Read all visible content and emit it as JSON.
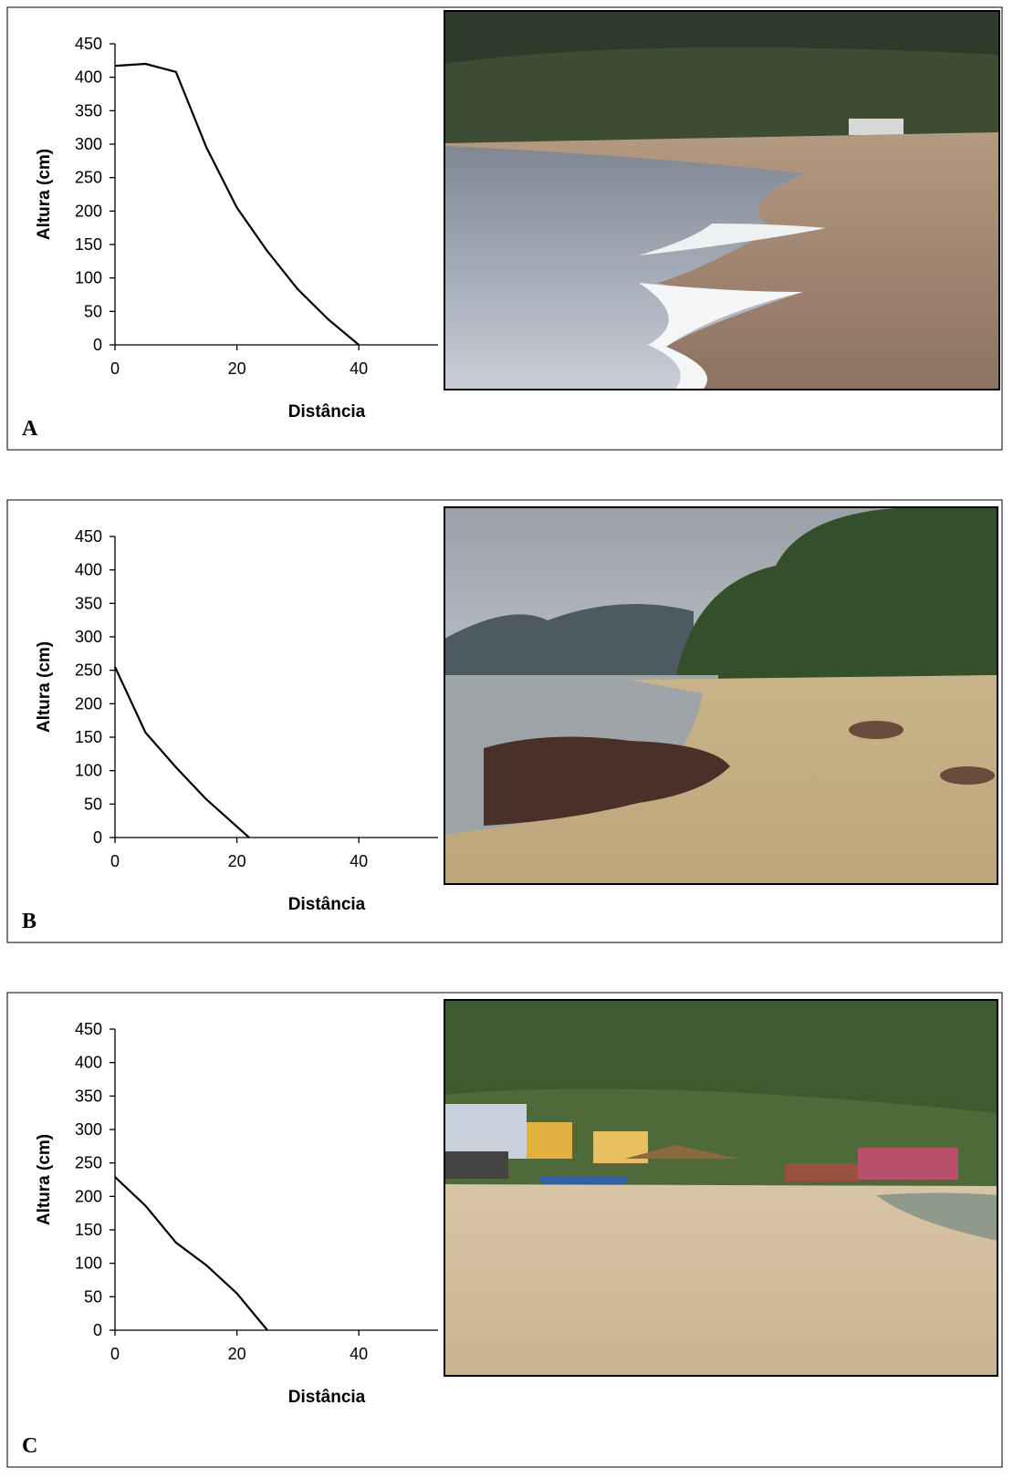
{
  "chart_data": [
    {
      "type": "line",
      "panel_label": "A",
      "ylabel": "Altura (cm)",
      "xlabel": "Distância",
      "x": [
        0,
        5,
        10,
        15,
        20,
        25,
        30,
        35,
        40
      ],
      "values": [
        417,
        420,
        408,
        295,
        205,
        140,
        83,
        38,
        0
      ],
      "color": "#000000",
      "xlim": [
        0,
        53
      ],
      "ylim": [
        0,
        450
      ],
      "xticks": [
        0,
        20,
        40
      ],
      "yticks": [
        0,
        50,
        100,
        150,
        200,
        250,
        300,
        350,
        400,
        450
      ]
    },
    {
      "type": "line",
      "panel_label": "B",
      "ylabel": "Altura (cm)",
      "xlabel": "Distância",
      "x": [
        0,
        5,
        10,
        15,
        22
      ],
      "values": [
        255,
        157,
        105,
        57,
        0
      ],
      "color": "#000000",
      "xlim": [
        0,
        53
      ],
      "ylim": [
        0,
        450
      ],
      "xticks": [
        0,
        20,
        40
      ],
      "yticks": [
        0,
        50,
        100,
        150,
        200,
        250,
        300,
        350,
        400,
        450
      ]
    },
    {
      "type": "line",
      "panel_label": "C",
      "ylabel": "Altura (cm)",
      "xlabel": "Distância",
      "x": [
        0,
        5,
        10,
        15,
        20,
        25
      ],
      "values": [
        229,
        186,
        131,
        97,
        55,
        0
      ],
      "color": "#000000",
      "xlim": [
        0,
        53
      ],
      "ylim": [
        0,
        450
      ],
      "xticks": [
        0,
        20,
        40
      ],
      "yticks": [
        0,
        50,
        100,
        150,
        200,
        250,
        300,
        350,
        400,
        450
      ]
    }
  ]
}
